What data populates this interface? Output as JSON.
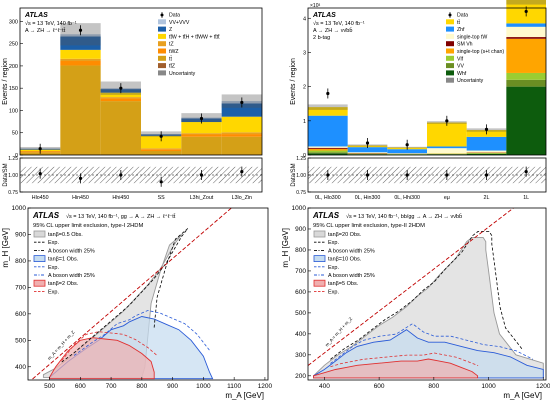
{
  "chart_data": [
    {
      "id": "tl",
      "type": "bar",
      "stacked": true,
      "ylabel": "Events / region",
      "ratio_ylabel": "Data/SM",
      "ylim": [
        0,
        330
      ],
      "yticks": [
        0,
        50,
        100,
        150,
        200,
        250,
        300
      ],
      "ratio_ylim": [
        0.75,
        1.25
      ],
      "ratio_yticks": [
        0.75,
        1.0,
        1.25
      ],
      "annotation": [
        "ATLAS",
        "√s = 13 TeV, 140 fb⁻¹",
        "A → ZH → ℓ⁺ℓ⁻tt̄"
      ],
      "categories": [
        "Hlo450",
        "Hin450",
        "Hhi450",
        "SS",
        "L3hi_Zout",
        "L3lo_Zin"
      ],
      "series": [
        {
          "name": "tt̄Z",
          "color": "#a05e2c",
          "values": [
            1,
            1,
            1,
            1,
            1,
            1
          ]
        },
        {
          "name": "tt̄",
          "color": "#d4a017",
          "values": [
            5,
            200,
            120,
            8,
            40,
            40
          ]
        },
        {
          "name": "tWZ",
          "color": "#ff8c00",
          "values": [
            2,
            10,
            6,
            4,
            5,
            6
          ]
        },
        {
          "name": "tZ",
          "color": "#e8a020",
          "values": [
            1,
            5,
            3,
            2,
            3,
            4
          ]
        },
        {
          "name": "tt̄W + tt̄H + tt̄WW + tt̄tt̄",
          "color": "#ffd700",
          "values": [
            3,
            20,
            10,
            28,
            25,
            35
          ]
        },
        {
          "name": "Z",
          "color": "#1c5fa8",
          "values": [
            2,
            30,
            8,
            3,
            8,
            30
          ]
        },
        {
          "name": "VV+VVV",
          "color": "#b0c4de",
          "values": [
            1,
            5,
            2,
            1,
            2,
            5
          ]
        }
      ],
      "uncertainty": [
        3,
        25,
        15,
        6,
        10,
        15
      ],
      "data_y": [
        14,
        280,
        150,
        42,
        82,
        118
      ],
      "ratio": [
        1.02,
        0.95,
        1.0,
        0.9,
        1.0,
        1.05
      ],
      "legend": [
        "Data",
        "VV+VVV",
        "Z",
        "tt̄W + tt̄H + tt̄WW + tt̄tt̄",
        "tZ",
        "tWZ",
        "tt̄",
        "tt̄Z",
        "Uncertainty"
      ]
    },
    {
      "id": "tr",
      "type": "bar",
      "stacked": true,
      "ylabel": "Events / region",
      "ratio_ylabel": "Data/SM",
      "y_multiplier": "×10³",
      "ylim": [
        0,
        4.3
      ],
      "yticks": [
        0,
        1,
        2,
        3,
        4
      ],
      "ratio_ylim": [
        0.75,
        1.25
      ],
      "ratio_yticks": [
        0.75,
        1.0,
        1.25
      ],
      "annotation": [
        "ATLAS",
        "√s = 13 TeV, 140 fb⁻¹",
        "A → ZH → νν̄bb̄",
        "2 b-tag"
      ],
      "categories": [
        "0L, Hlo300",
        "0L, Hin300",
        "0L, Hhi300",
        "eμ",
        "2L",
        "1L"
      ],
      "series": [
        {
          "name": "Whf",
          "color": "#0d5c0d",
          "values": [
            0.05,
            0.02,
            0.01,
            0.02,
            0.03,
            2.0
          ]
        },
        {
          "name": "VV",
          "color": "#6b8e23",
          "values": [
            0.03,
            0.01,
            0.01,
            0.01,
            0.01,
            0.2
          ]
        },
        {
          "name": "Vlf",
          "color": "#9acd32",
          "values": [
            0.05,
            0.01,
            0.01,
            0.01,
            0.02,
            0.2
          ]
        },
        {
          "name": "single-top (s+t chan)",
          "color": "#ffa500",
          "values": [
            0.05,
            0.01,
            0.01,
            0.01,
            0.01,
            1.0
          ]
        },
        {
          "name": "SM Vh",
          "color": "#800000",
          "values": [
            0.03,
            0.01,
            0.0,
            0.0,
            0.01,
            0.05
          ]
        },
        {
          "name": "single-top tW",
          "color": "#fffacd",
          "values": [
            0.04,
            0.02,
            0.01,
            0.15,
            0.05,
            0.3
          ]
        },
        {
          "name": "Zhf",
          "color": "#1e90ff",
          "values": [
            0.9,
            0.15,
            0.12,
            0.05,
            0.4,
            0.1
          ]
        },
        {
          "name": "tt̄",
          "color": "#ffd700",
          "values": [
            0.25,
            0.05,
            0.05,
            0.7,
            0.2,
            0.75
          ]
        }
      ],
      "uncertainty": [
        0.08,
        0.03,
        0.02,
        0.04,
        0.05,
        0.2
      ],
      "data_y": [
        1.8,
        0.35,
        0.3,
        1.0,
        0.75,
        4.2
      ],
      "ratio": [
        1.0,
        1.0,
        1.0,
        1.0,
        1.0,
        1.05
      ],
      "legend": [
        "Data",
        "tt̄",
        "Zhf",
        "single-top tW",
        "SM Vh",
        "single-top (s+t chan)",
        "Vlf",
        "VV",
        "Whf",
        "Uncertainty"
      ]
    },
    {
      "id": "bl",
      "type": "area",
      "xlabel": "m_A [GeV]",
      "ylabel": "m_H [GeV]",
      "xlim": [
        430,
        1210
      ],
      "ylim": [
        350,
        1000
      ],
      "xticks": [
        500,
        600,
        700,
        800,
        900,
        1000,
        1100,
        1200
      ],
      "yticks": [
        400,
        500,
        600,
        700,
        800,
        900,
        1000
      ],
      "annotation": [
        "ATLAS",
        "√s = 13 TeV, 140 fb⁻¹, gg → A → ZH → ℓ⁺ℓ⁻tt̄",
        "95% CL upper limit exclusion, type-I 2HDM"
      ],
      "diagonal_label": "m_A = m_H + m_Z",
      "legend": [
        {
          "label": "tanβ=0.5 Obs.",
          "color": "#999999",
          "fill": "#d9d9d9"
        },
        {
          "label": "Exp.",
          "color": "#000000",
          "dash": true
        },
        {
          "label": "A boson width 25%",
          "color": "#000000",
          "dashdot": true
        },
        {
          "label": "tanβ=1 Obs.",
          "color": "#2a5bd7",
          "fill": "#c5dcf0"
        },
        {
          "label": "Exp.",
          "color": "#2a5bd7",
          "dash": true
        },
        {
          "label": "A boson width 25%",
          "color": "#2a5bd7",
          "dashdot": true
        },
        {
          "label": "tanβ=2 Obs.",
          "color": "#e03030",
          "fill": "#f0b0b0"
        },
        {
          "label": "Exp.",
          "color": "#e03030",
          "dash": true
        }
      ],
      "regions": [
        {
          "name": "tanβ=0.5",
          "color": "#999999",
          "fill": "#d9d9d9",
          "points": [
            [
              480,
              370
            ],
            [
              520,
              395
            ],
            [
              560,
              430
            ],
            [
              600,
              470
            ],
            [
              650,
              520
            ],
            [
              700,
              570
            ],
            [
              740,
              610
            ],
            [
              780,
              660
            ],
            [
              820,
              710
            ],
            [
              860,
              770
            ],
            [
              890,
              830
            ],
            [
              910,
              870
            ],
            [
              930,
              900
            ],
            [
              910,
              880
            ],
            [
              890,
              860
            ],
            [
              860,
              760
            ],
            [
              830,
              640
            ],
            [
              820,
              520
            ],
            [
              810,
              400
            ],
            [
              800,
              360
            ],
            [
              480,
              360
            ]
          ]
        },
        {
          "name": "tanβ=1",
          "color": "#2a5bd7",
          "fill": "#c5dcf0",
          "points": [
            [
              500,
              360
            ],
            [
              560,
              420
            ],
            [
              620,
              470
            ],
            [
              660,
              500
            ],
            [
              700,
              540
            ],
            [
              740,
              555
            ],
            [
              760,
              570
            ],
            [
              800,
              590
            ],
            [
              840,
              580
            ],
            [
              880,
              560
            ],
            [
              920,
              540
            ],
            [
              960,
              500
            ],
            [
              1000,
              440
            ],
            [
              1020,
              380
            ],
            [
              1030,
              355
            ],
            [
              500,
              355
            ]
          ]
        },
        {
          "name": "tanβ=2",
          "color": "#e03030",
          "fill": "#f0b0b0",
          "points": [
            [
              500,
              360
            ],
            [
              520,
              400
            ],
            [
              560,
              460
            ],
            [
              600,
              500
            ],
            [
              640,
              510
            ],
            [
              680,
              505
            ],
            [
              720,
              500
            ],
            [
              760,
              480
            ],
            [
              800,
              450
            ],
            [
              830,
              420
            ],
            [
              840,
              380
            ],
            [
              840,
              355
            ],
            [
              500,
              355
            ]
          ]
        }
      ]
    },
    {
      "id": "br",
      "type": "area",
      "xlabel": "m_A [GeV]",
      "ylabel": "m_H [GeV]",
      "xlim": [
        340,
        1210
      ],
      "ylim": [
        180,
        1000
      ],
      "xticks": [
        400,
        600,
        800,
        1000,
        1200
      ],
      "yticks": [
        200,
        300,
        400,
        500,
        600,
        700,
        800,
        900,
        1000
      ],
      "annotation": [
        "ATLAS",
        "√s = 13 TeV, 140 fb⁻¹, bb/gg → A → ZH → νν̄bb̄",
        "95% CL upper limit exclusion, type-II 2HDM"
      ],
      "diagonal_label": "m_A = m_H + m_Z",
      "legend": [
        {
          "label": "tanβ=20 Obs.",
          "color": "#999999",
          "fill": "#d9d9d9"
        },
        {
          "label": "Exp.",
          "color": "#000000",
          "dash": true
        },
        {
          "label": "A boson width 25%",
          "color": "#000000",
          "dashdot": true
        },
        {
          "label": "tanβ=10 Obs.",
          "color": "#2a5bd7",
          "fill": "#c5dcf0"
        },
        {
          "label": "Exp.",
          "color": "#2a5bd7",
          "dash": true
        },
        {
          "label": "A boson width 25%",
          "color": "#2a5bd7",
          "dashdot": true
        },
        {
          "label": "tanβ=5 Obs.",
          "color": "#e03030",
          "fill": "#f0b0b0"
        },
        {
          "label": "Exp.",
          "color": "#e03030",
          "dash": true
        }
      ],
      "regions": [
        {
          "name": "tanβ=20",
          "color": "#999999",
          "fill": "#d9d9d9",
          "points": [
            [
              360,
              200
            ],
            [
              400,
              250
            ],
            [
              450,
              300
            ],
            [
              500,
              340
            ],
            [
              550,
              390
            ],
            [
              600,
              440
            ],
            [
              650,
              480
            ],
            [
              700,
              530
            ],
            [
              740,
              580
            ],
            [
              780,
              620
            ],
            [
              820,
              680
            ],
            [
              850,
              720
            ],
            [
              880,
              760
            ],
            [
              900,
              800
            ],
            [
              920,
              840
            ],
            [
              940,
              860
            ],
            [
              960,
              860
            ],
            [
              980,
              860
            ],
            [
              990,
              840
            ],
            [
              990,
              800
            ],
            [
              1000,
              700
            ],
            [
              1010,
              600
            ],
            [
              1020,
              500
            ],
            [
              1040,
              400
            ],
            [
              1100,
              300
            ],
            [
              1200,
              260
            ],
            [
              1200,
              190
            ],
            [
              360,
              190
            ]
          ]
        },
        {
          "name": "tanβ=10",
          "color": "#2a5bd7",
          "fill": "#c5dcf0",
          "points": [
            [
              360,
              200
            ],
            [
              400,
              230
            ],
            [
              440,
              270
            ],
            [
              480,
              310
            ],
            [
              520,
              340
            ],
            [
              580,
              360
            ],
            [
              640,
              370
            ],
            [
              700,
              420
            ],
            [
              740,
              380
            ],
            [
              780,
              360
            ],
            [
              840,
              360
            ],
            [
              900,
              340
            ],
            [
              960,
              320
            ],
            [
              1020,
              310
            ],
            [
              1080,
              290
            ],
            [
              1140,
              250
            ],
            [
              1200,
              230
            ],
            [
              1200,
              190
            ],
            [
              360,
              190
            ]
          ]
        },
        {
          "name": "tanβ=5",
          "color": "#e03030",
          "fill": "#f0b0b0",
          "points": [
            [
              360,
              200
            ],
            [
              400,
              215
            ],
            [
              440,
              230
            ],
            [
              480,
              240
            ],
            [
              520,
              250
            ],
            [
              600,
              260
            ],
            [
              680,
              270
            ],
            [
              740,
              270
            ],
            [
              780,
              280
            ],
            [
              820,
              270
            ],
            [
              860,
              260
            ],
            [
              900,
              240
            ],
            [
              940,
              220
            ],
            [
              960,
              200
            ],
            [
              960,
              190
            ],
            [
              360,
              190
            ]
          ]
        }
      ]
    }
  ]
}
